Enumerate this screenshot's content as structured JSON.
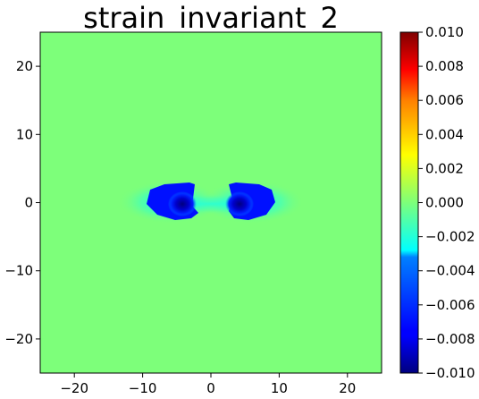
{
  "chart_data": {
    "type": "heatmap",
    "title": "strain_invariant_2",
    "xlim": [
      -25,
      25
    ],
    "ylim": [
      -25,
      25
    ],
    "x_ticks": [
      -20,
      -10,
      0,
      10,
      20
    ],
    "y_ticks": [
      20,
      10,
      0,
      -10,
      -20
    ],
    "colormap": "jet",
    "colorbar": {
      "vmin": -0.01,
      "vmax": 0.01,
      "ticks": [
        "0.010",
        "0.008",
        "0.006",
        "0.004",
        "0.002",
        "0.000",
        "−0.002",
        "−0.004",
        "−0.006",
        "−0.008",
        "−0.010"
      ]
    },
    "background_value": 0.0,
    "features": [
      {
        "type": "lobe",
        "center": [
          -5,
          0
        ],
        "min_value": -0.01
      },
      {
        "type": "lobe",
        "center": [
          5,
          0
        ],
        "min_value": -0.01
      }
    ]
  }
}
